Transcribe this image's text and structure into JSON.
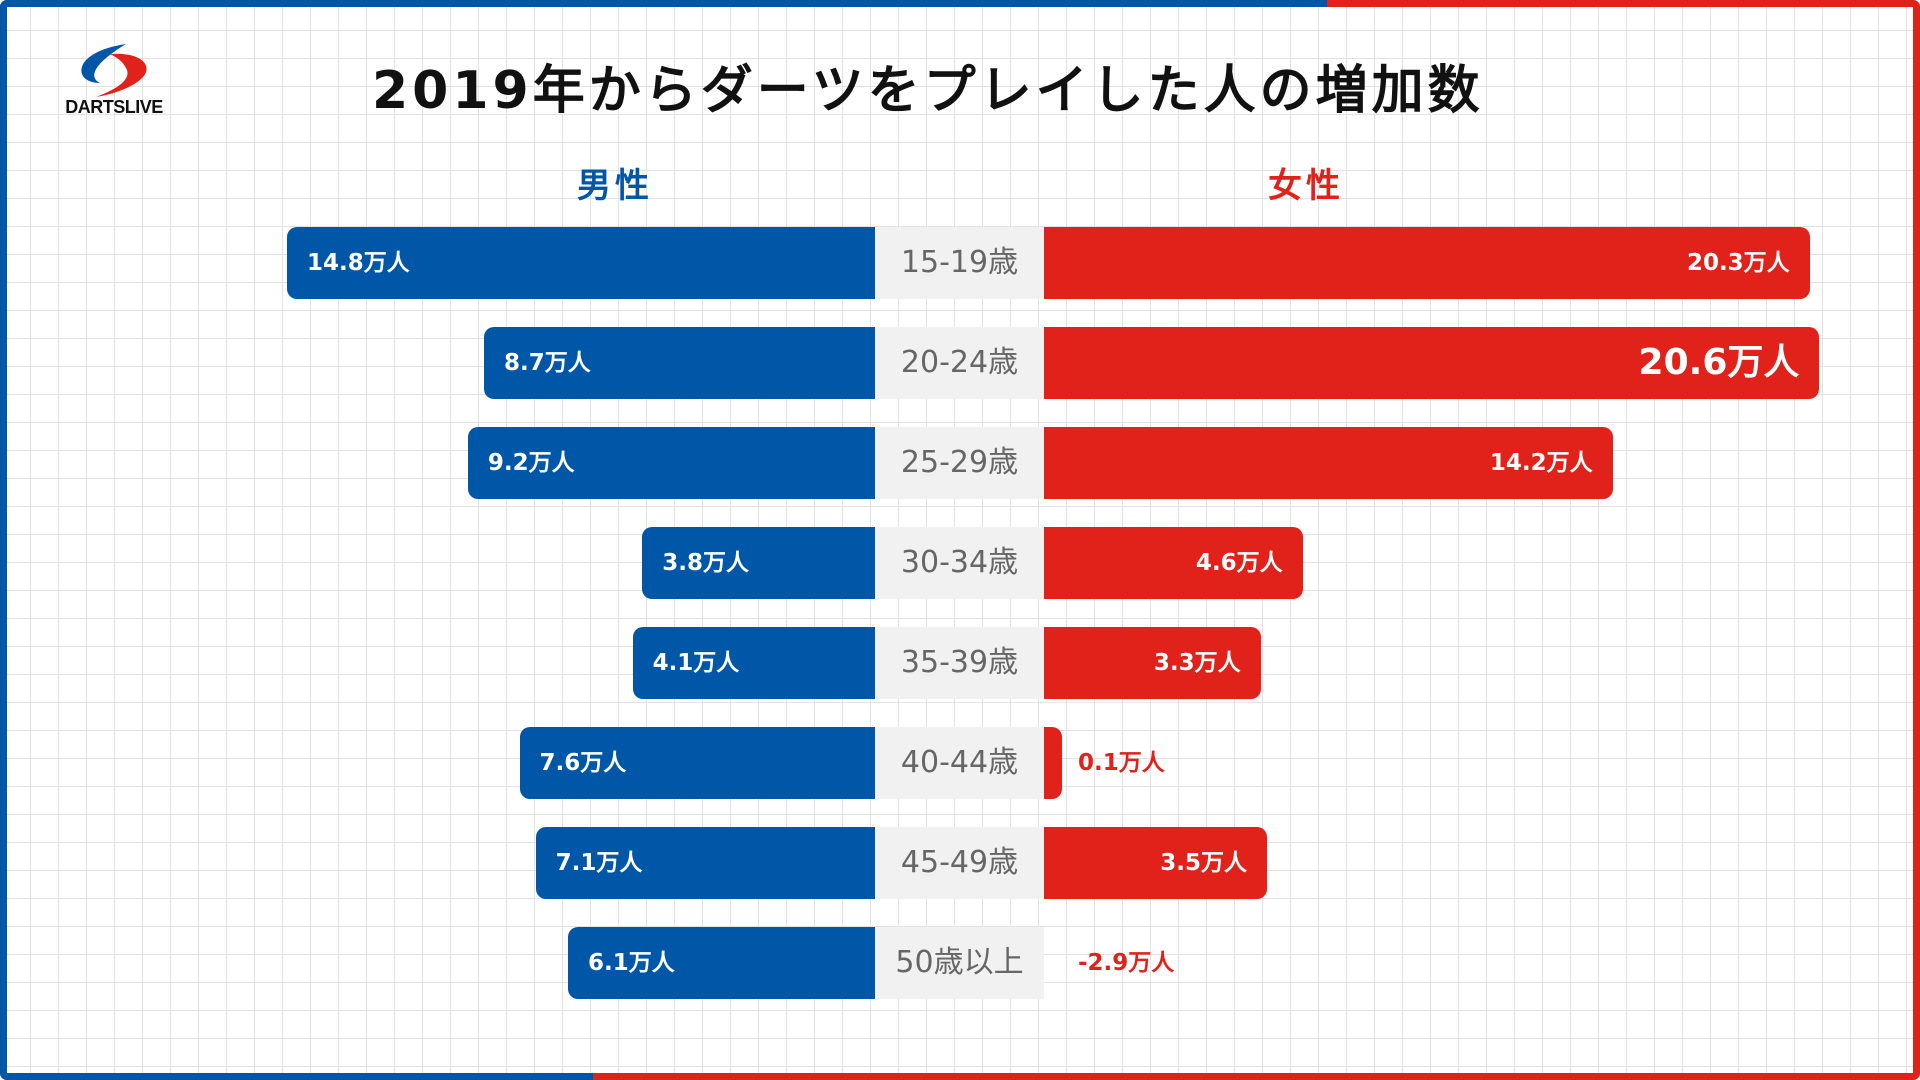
{
  "brand": {
    "logo_text": "DARTSLIVE",
    "colors": {
      "male": "#0057a8",
      "female": "#e0221a",
      "age_bg": "#f1f1f1",
      "age_text": "#666666"
    }
  },
  "chart_data": {
    "type": "bar",
    "orientation": "horizontal-butterfly",
    "title": "2019年からダーツをプレイした人の増加数",
    "unit": "万人",
    "categories": [
      "15-19歳",
      "20-24歳",
      "25-29歳",
      "30-34歳",
      "35-39歳",
      "40-44歳",
      "45-49歳",
      "50歳以上"
    ],
    "series": [
      {
        "name": "男性",
        "side": "left",
        "values": [
          14.8,
          8.7,
          9.2,
          3.8,
          4.1,
          7.6,
          7.1,
          6.1
        ]
      },
      {
        "name": "女性",
        "side": "right",
        "values": [
          20.3,
          20.6,
          14.2,
          4.6,
          3.3,
          0.1,
          3.5,
          -2.9
        ]
      }
    ],
    "labels": {
      "male": [
        "14.8万人",
        "8.7万人",
        "9.2万人",
        "3.8万人",
        "4.1万人",
        "7.6万人",
        "7.1万人",
        "6.1万人"
      ],
      "female": [
        "20.3万人",
        "20.6万人",
        "14.2万人",
        "4.6万人",
        "3.3万人",
        "0.1万人",
        "3.5万人",
        "-2.9万人"
      ]
    },
    "highlight": {
      "series": "女性",
      "category": "20-24歳"
    },
    "grid": true,
    "legend": "top (series names above each side)"
  }
}
